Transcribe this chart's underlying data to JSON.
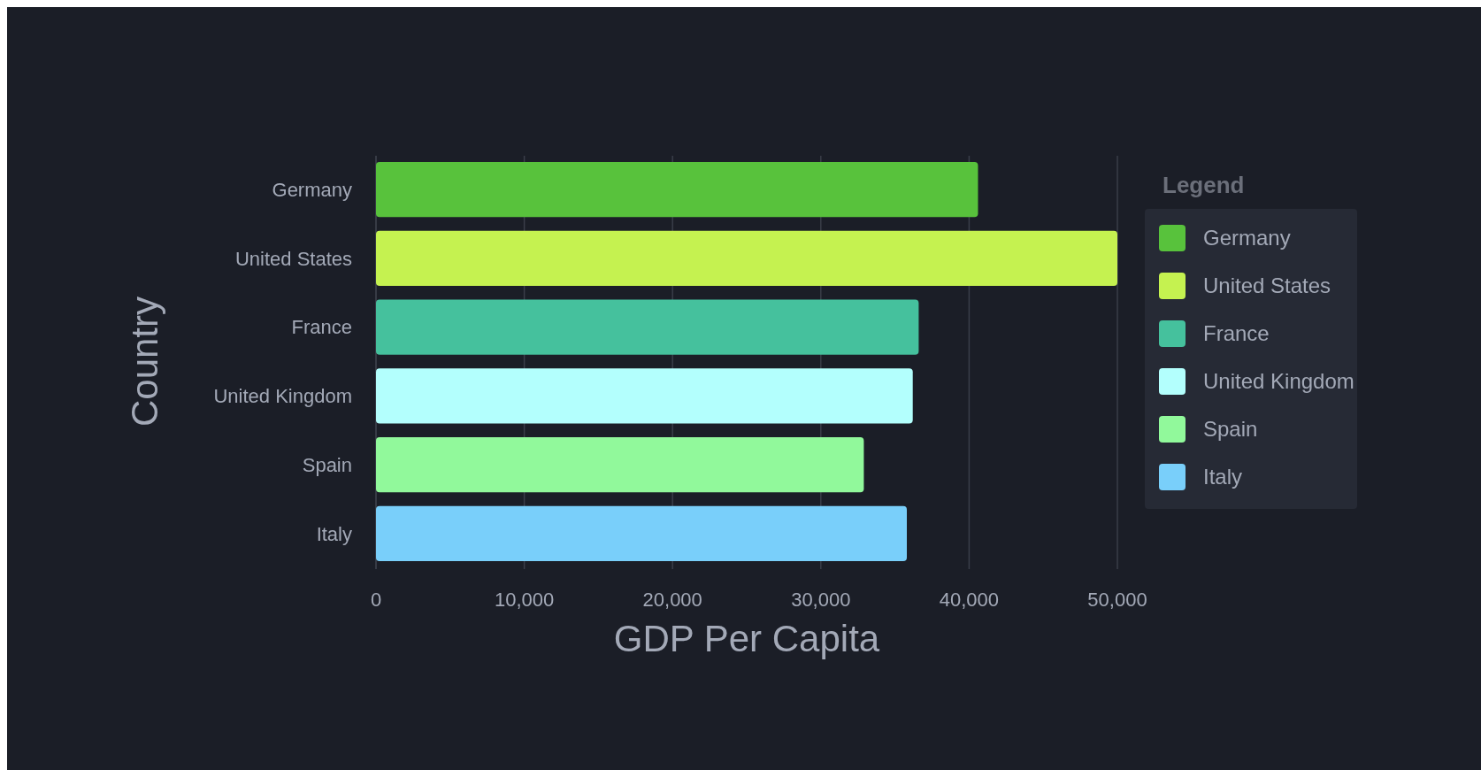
{
  "chart_data": {
    "type": "bar",
    "orientation": "horizontal",
    "xlabel": "GDP Per Capita",
    "ylabel": "Country",
    "legend_title": "Legend",
    "categories": [
      "Germany",
      "United States",
      "France",
      "United Kingdom",
      "Spain",
      "Italy"
    ],
    "series": [
      {
        "name": "Germany",
        "color": "#58c23c",
        "values": [
          40600,
          null,
          null,
          null,
          null,
          null
        ]
      },
      {
        "name": "United States",
        "color": "#c5f250",
        "values": [
          null,
          50000,
          null,
          null,
          null,
          null
        ]
      },
      {
        "name": "France",
        "color": "#45c19d",
        "values": [
          null,
          null,
          36600,
          null,
          null,
          null
        ]
      },
      {
        "name": "United Kingdom",
        "color": "#b3fffd",
        "values": [
          null,
          null,
          null,
          36200,
          null,
          null
        ]
      },
      {
        "name": "Spain",
        "color": "#91f99b",
        "values": [
          null,
          null,
          null,
          null,
          32900,
          null
        ]
      },
      {
        "name": "Italy",
        "color": "#79cffa",
        "values": [
          null,
          null,
          null,
          null,
          null,
          35800
        ]
      }
    ],
    "xlim": [
      0,
      50000
    ],
    "xticks": [
      0,
      {
        "value": 10000,
        "label": "10,000"
      },
      {
        "value": 20000,
        "label": "20,000"
      },
      {
        "value": 30000,
        "label": "30,000"
      },
      {
        "value": 40000,
        "label": "40,000"
      },
      {
        "value": 50000,
        "label": "50,000"
      }
    ],
    "grid": "x",
    "legend": "right"
  }
}
